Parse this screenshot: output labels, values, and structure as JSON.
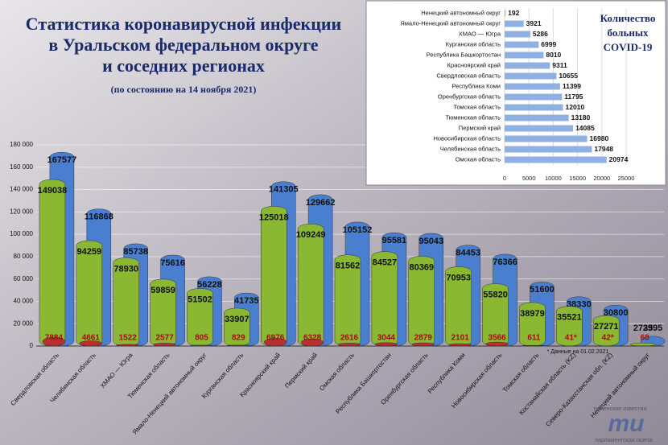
{
  "chart_data": [
    {
      "type": "cylinder",
      "title": [
        "Статистика коронавирусной инфекции",
        "в Уральском федеральном округе",
        "и соседних регионах",
        "(по состоянию на 14 ноября 2021)"
      ],
      "categories": [
        "Свердловская область",
        "Челябинская область",
        "ХМАО — Югра",
        "Тюменская область",
        "Ямало-Ненецкий автономный округ",
        "Курганская область",
        "Красноярский край",
        "Пермский край",
        "Омская область",
        "Республика Башкортостан",
        "Оренбургская область",
        "Республика Коми",
        "Новосибирская область",
        "Томская область",
        "Костанайская область (KZ)",
        "Северо-Казахстанская обл. (KZ)",
        "Ненецкий автономный округ"
      ],
      "series": [
        {
          "color": "#4a7fd0",
          "values": [
            167577,
            116868,
            85738,
            75616,
            56228,
            41735,
            141305,
            129662,
            105152,
            95581,
            95043,
            84453,
            76366,
            51600,
            38330,
            30800,
            2995
          ]
        },
        {
          "color": "#8ab832",
          "values": [
            149038,
            94259,
            78930,
            59859,
            51502,
            33907,
            125018,
            109249,
            81562,
            84527,
            80369,
            70953,
            55820,
            38979,
            35521,
            27271,
            2735
          ]
        },
        {
          "color": "#b83030",
          "values": [
            7884,
            4661,
            1522,
            2577,
            805,
            829,
            6976,
            6328,
            2616,
            3044,
            2879,
            2101,
            3566,
            611,
            41,
            42,
            68
          ],
          "value_labels": [
            "7884",
            "4661",
            "1522",
            "2577",
            "805",
            "829",
            "6976",
            "6328",
            "2616",
            "3044",
            "2879",
            "2101",
            "3566",
            "611",
            "41*",
            "42*",
            "68"
          ]
        }
      ],
      "ylim": [
        0,
        180000
      ],
      "yticks": [
        {
          "value": 0,
          "label": "0"
        },
        {
          "value": 20000,
          "label": "20 000"
        },
        {
          "value": 40000,
          "label": "40 000"
        },
        {
          "value": 60000,
          "label": "60 000"
        },
        {
          "value": 80000,
          "label": "80 000"
        },
        {
          "value": 100000,
          "label": "100 000"
        },
        {
          "value": 120000,
          "label": "120 000"
        },
        {
          "value": 140000,
          "label": "140 000"
        },
        {
          "value": 160000,
          "label": "160 000"
        },
        {
          "value": 180000,
          "label": "180 000"
        }
      ],
      "note": "* Данные на 01.02.2021"
    },
    {
      "type": "hbar",
      "title": [
        "Количество",
        "больных",
        "COVID-19"
      ],
      "categories": [
        "Ненецкий автономный округ",
        "Ямало-Ненецкий автономный округ",
        "ХМАО — Югра",
        "Курганская область",
        "Республика Башкортостан",
        "Красноярский край",
        "Свердловская область",
        "Республика Коми",
        "Оренбургская область",
        "Томская область",
        "Тюменская область",
        "Пермский край",
        "Новосибирская область",
        "Челябинская область",
        "Омская область"
      ],
      "values": [
        192,
        3921,
        5286,
        6999,
        8010,
        9311,
        10655,
        11399,
        11795,
        12010,
        13180,
        14085,
        16980,
        17948,
        20974
      ],
      "color": "#8fb0e0",
      "xlim": [
        0,
        25000
      ],
      "xticks": [
        0,
        5000,
        10000,
        15000,
        20000,
        25000
      ]
    }
  ],
  "brand": [
    "тюменские известия",
    "ти",
    "парламентская газета"
  ]
}
